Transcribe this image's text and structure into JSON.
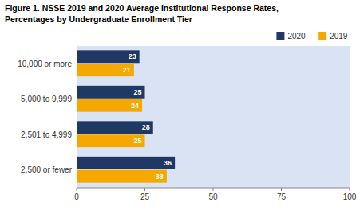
{
  "chart_data": {
    "type": "bar",
    "orientation": "horizontal",
    "title": "Figure 1. NSSE 2019 and 2020 Average Institutional Response Rates,",
    "subtitle": "Percentages by Undergraduate Enrollment Tier",
    "categories": [
      "10,000 or more",
      "5,000 to 9,999",
      "2,501 to 4,999",
      "2,500 or fewer"
    ],
    "series": [
      {
        "name": "2020",
        "color": "#1F3864",
        "values": [
          23,
          25,
          28,
          36
        ]
      },
      {
        "name": "2019",
        "color": "#F5A800",
        "values": [
          21,
          24,
          25,
          33
        ]
      }
    ],
    "xlim": [
      0,
      100
    ],
    "xticks": [
      0,
      25,
      50,
      75,
      100
    ],
    "grid": false,
    "legend": "upper right",
    "data_labels": true
  }
}
